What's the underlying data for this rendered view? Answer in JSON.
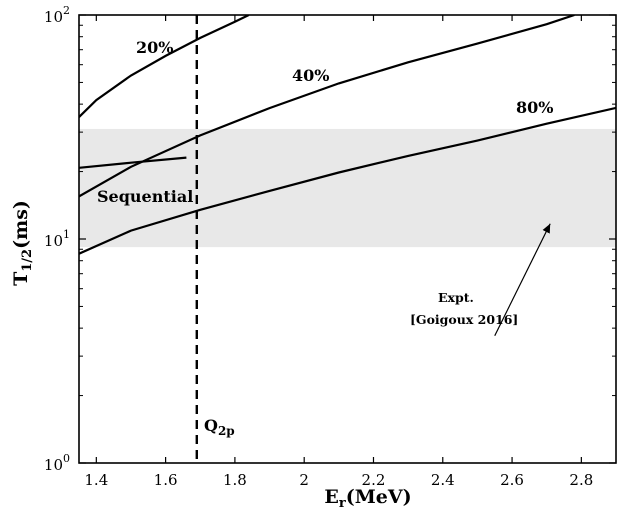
{
  "chart_data": {
    "type": "line",
    "title": "",
    "x_scale": "linear",
    "y_scale": "log",
    "xlim": [
      1.35,
      2.9
    ],
    "ylim": [
      1,
      100
    ],
    "x_ticks": [
      1.4,
      1.6,
      1.8,
      2.0,
      2.2,
      2.4,
      2.6,
      2.8
    ],
    "x_tick_labels": [
      "1.4",
      "1.6",
      "1.8",
      "2",
      "2.2",
      "2.4",
      "2.6",
      "2.8"
    ],
    "y_ticks": [
      1,
      10,
      100
    ],
    "y_tick_labels": [
      {
        "base": "10",
        "exp": "0"
      },
      {
        "base": "10",
        "exp": "1"
      },
      {
        "base": "10",
        "exp": "2"
      }
    ],
    "xlabel": {
      "main": "E",
      "sub": "r",
      "rest": "(MeV)"
    },
    "ylabel": {
      "main": "T",
      "sub": "1/2",
      "rest": "(ms)"
    },
    "grid": false,
    "shaded_band": {
      "y": [
        9.2,
        31
      ],
      "color": "#e8e8e8"
    },
    "vline": {
      "x": 1.69,
      "style": "dashed",
      "label": {
        "main": "Q",
        "sub": "2p"
      }
    },
    "series": [
      {
        "label": "20%",
        "x": [
          1.35,
          1.4,
          1.5,
          1.6,
          1.7,
          1.8,
          1.84
        ],
        "y": [
          35,
          41.7,
          53.7,
          65.7,
          79,
          93.3,
          100
        ]
      },
      {
        "label": "40%",
        "x": [
          1.35,
          1.5,
          1.7,
          1.9,
          2.1,
          2.3,
          2.5,
          2.7,
          2.78
        ],
        "y": [
          15.5,
          21,
          29,
          38.4,
          49.5,
          61.5,
          74.5,
          91,
          100
        ]
      },
      {
        "label": "80%",
        "x": [
          1.35,
          1.5,
          1.7,
          1.9,
          2.1,
          2.3,
          2.5,
          2.7,
          2.9
        ],
        "y": [
          8.6,
          10.9,
          13.5,
          16.4,
          19.8,
          23.5,
          27.5,
          32.7,
          38.5
        ]
      },
      {
        "label": "Sequential",
        "x": [
          1.35,
          1.5,
          1.66
        ],
        "y": [
          20.8,
          21.9,
          23.1
        ]
      }
    ],
    "annotations": {
      "expt_line1": "Expt.",
      "expt_line2": "[Goigoux 2016]",
      "expt_arrow_from": [
        2.55,
        3.7
      ],
      "expt_arrow_to": [
        2.71,
        11.7
      ]
    }
  }
}
